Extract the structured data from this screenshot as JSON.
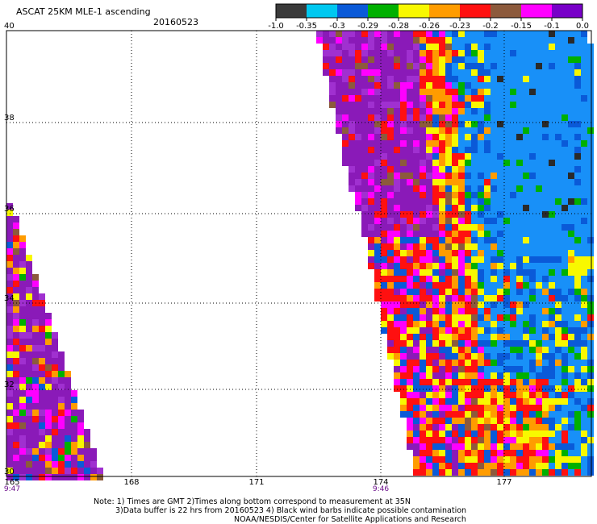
{
  "header": {
    "title": "ASCAT 25KM MLE-1 ascending",
    "date": "20160523"
  },
  "colorbar": {
    "labels": [
      "-1.0",
      "-0.35",
      "-0.3",
      "-0.29",
      "-0.28",
      "-0.26",
      "-0.23",
      "-0.2",
      "-0.15",
      "-0.1",
      "0.0"
    ],
    "colors": [
      "#3a3a3a",
      "#00c8f0",
      "#0a5ad8",
      "#00b000",
      "#f8f800",
      "#ff9c00",
      "#ff1010",
      "#8c5a3c",
      "#ff00ff",
      "#7800c8"
    ]
  },
  "map": {
    "lat_labels": [
      "40",
      "38",
      "36",
      "34",
      "32",
      "30"
    ],
    "lon_labels": [
      "165",
      "168",
      "171",
      "174",
      "177"
    ],
    "time_labels": [
      {
        "lon": "165",
        "time": "9:47"
      },
      {
        "lon": "174",
        "time": "9:46"
      }
    ],
    "palette": {
      "purple": "#8a1ab8",
      "violet": "#a030d0",
      "magenta": "#ff00ff",
      "red": "#ff1010",
      "darkred": "#c80000",
      "orange": "#ff9c00",
      "yellow": "#f8f800",
      "green": "#00b000",
      "blue": "#0a5ad8",
      "lightblue": "#1890f8",
      "cyan": "#00c8f0",
      "brown": "#8c5a3c",
      "dark": "#2a2a2a",
      "white": "#ffffff"
    }
  },
  "footer": {
    "note1": "Note: 1) Times are GMT 2)Times along bottom correspond to measurement at 35N",
    "note2": "3)Data buffer is 22 hrs from 20160523 4) Black wind barbs indicate possible contamination",
    "credit": "NOAA/NESDIS/Center for Satellite Applications and Research"
  }
}
